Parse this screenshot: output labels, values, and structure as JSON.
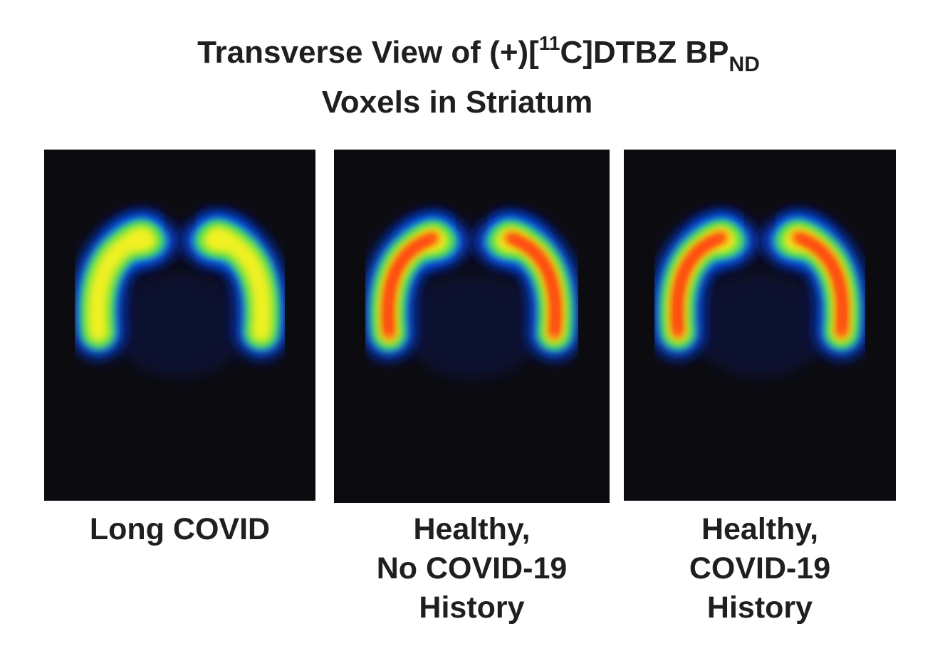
{
  "header": {
    "title": {
      "line1": {
        "before": "Transverse View of (+)[",
        "superscript": "11",
        "middle": "C]DTBZ BP",
        "subscript": "ND"
      },
      "line2": "Voxels in Striatum"
    }
  },
  "panels": [
    {
      "label_lines": [
        "Long COVID"
      ]
    },
    {
      "label_lines": [
        "Healthy,",
        "No COVID-19",
        "History"
      ]
    },
    {
      "label_lines": [
        "Healthy,",
        "COVID-19",
        "History"
      ]
    }
  ]
}
